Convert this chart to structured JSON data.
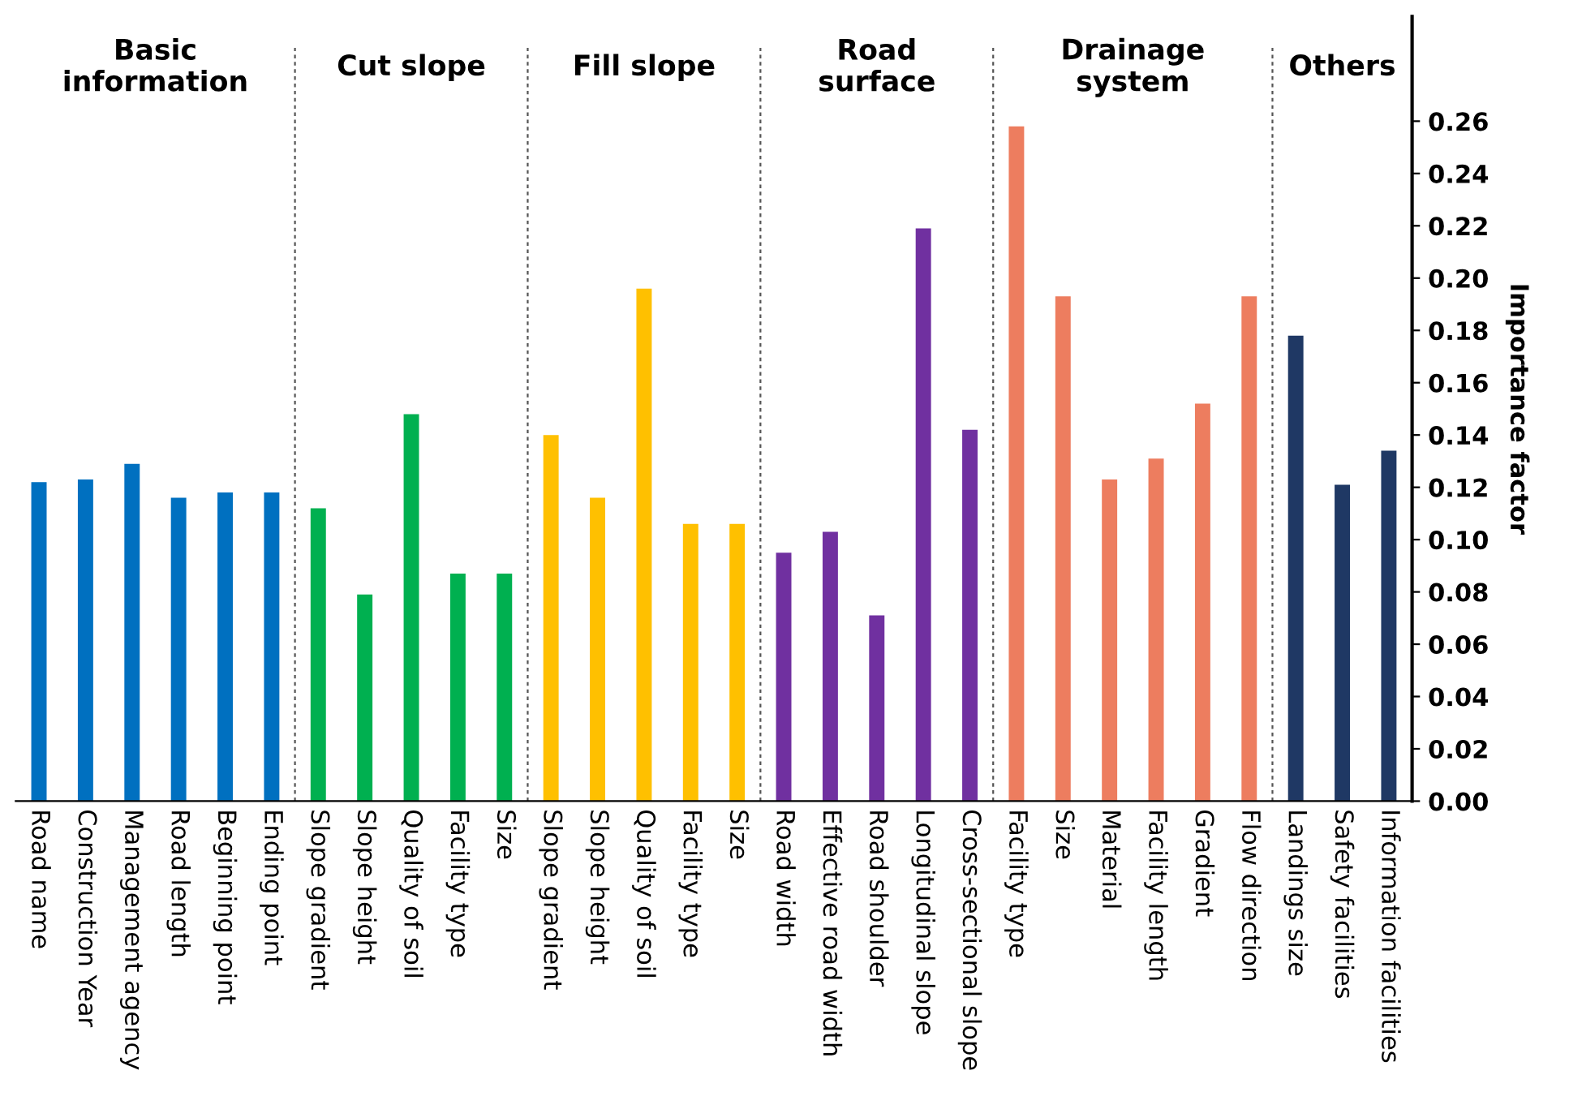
{
  "chart_data": {
    "type": "bar",
    "ylabel": "Importance factor",
    "categories": [
      "Road name",
      "Construction Year",
      "Management agency",
      "Road length",
      "Beginning point",
      "Ending point",
      "Slope gradient",
      "Slope height",
      "Quality of soil",
      "Facility type",
      "Size",
      "Slope gradient",
      "Slope height",
      "Quality of soil",
      "Facility type",
      "Size",
      "Road width",
      "Effective road width",
      "Road shoulder",
      "Longitudinal slope",
      "Cross-sectional slope",
      "Facility type",
      "Size",
      "Material",
      "Facility length",
      "Gradient",
      "Flow direction",
      "Landings size",
      "Safety facilities",
      "Information facilities"
    ],
    "series": [
      {
        "color": "#0070c0",
        "values": [
          0.122,
          0.123,
          0.129,
          0.116,
          0.118,
          0.118,
          null,
          null,
          null,
          null,
          null,
          null,
          null,
          null,
          null,
          null,
          null,
          null,
          null,
          null,
          null,
          null,
          null,
          null,
          null,
          null,
          null,
          null,
          null,
          null
        ]
      },
      {
        "color": "#00b050",
        "values": [
          null,
          null,
          null,
          null,
          null,
          null,
          0.112,
          0.079,
          0.148,
          0.087,
          0.087,
          null,
          null,
          null,
          null,
          null,
          null,
          null,
          null,
          null,
          null,
          null,
          null,
          null,
          null,
          null,
          null,
          null,
          null,
          null
        ]
      },
      {
        "color": "#ffc000",
        "values": [
          null,
          null,
          null,
          null,
          null,
          null,
          null,
          null,
          null,
          null,
          null,
          0.14,
          0.116,
          0.196,
          0.106,
          0.106,
          null,
          null,
          null,
          null,
          null,
          null,
          null,
          null,
          null,
          null,
          null,
          null,
          null,
          null
        ]
      },
      {
        "color": "#7030a0",
        "values": [
          null,
          null,
          null,
          null,
          null,
          null,
          null,
          null,
          null,
          null,
          null,
          null,
          null,
          null,
          null,
          null,
          0.095,
          0.103,
          0.071,
          0.219,
          0.142,
          null,
          null,
          null,
          null,
          null,
          null,
          null,
          null,
          null
        ]
      },
      {
        "color": "#ed7d5f",
        "values": [
          null,
          null,
          null,
          null,
          null,
          null,
          null,
          null,
          null,
          null,
          null,
          null,
          null,
          null,
          null,
          null,
          null,
          null,
          null,
          null,
          null,
          0.258,
          0.193,
          0.123,
          0.131,
          0.152,
          0.193,
          null,
          null,
          null
        ]
      },
      {
        "color": "#1f3864",
        "values": [
          null,
          null,
          null,
          null,
          null,
          null,
          null,
          null,
          null,
          null,
          null,
          null,
          null,
          null,
          null,
          null,
          null,
          null,
          null,
          null,
          null,
          null,
          null,
          null,
          null,
          null,
          null,
          0.178,
          0.121,
          0.134
        ]
      }
    ],
    "ylim": [
      0,
      0.3
    ],
    "yticks": [
      {
        "value": 0,
        "label": "0.00"
      },
      {
        "value": 0.02,
        "label": "0.02"
      },
      {
        "value": 0.04,
        "label": "0.04"
      },
      {
        "value": 0.06,
        "label": "0.06"
      },
      {
        "value": 0.08,
        "label": "0.08"
      },
      {
        "value": 0.1,
        "label": "0.10"
      },
      {
        "value": 0.12,
        "label": "0.12"
      },
      {
        "value": 0.14,
        "label": "0.14"
      },
      {
        "value": 0.16,
        "label": "0.16"
      },
      {
        "value": 0.18,
        "label": "0.18"
      },
      {
        "value": 0.2,
        "label": "0.20"
      },
      {
        "value": 0.22,
        "label": "0.22"
      },
      {
        "value": 0.24,
        "label": "0.24"
      },
      {
        "value": 0.26,
        "label": "0.26"
      }
    ],
    "annotations": [
      "Basic\ninformation",
      "Cut slope",
      "Fill slope",
      "Road\nsurface",
      "Drainage\nsystem",
      "Others"
    ],
    "grid": false,
    "legend": false
  }
}
